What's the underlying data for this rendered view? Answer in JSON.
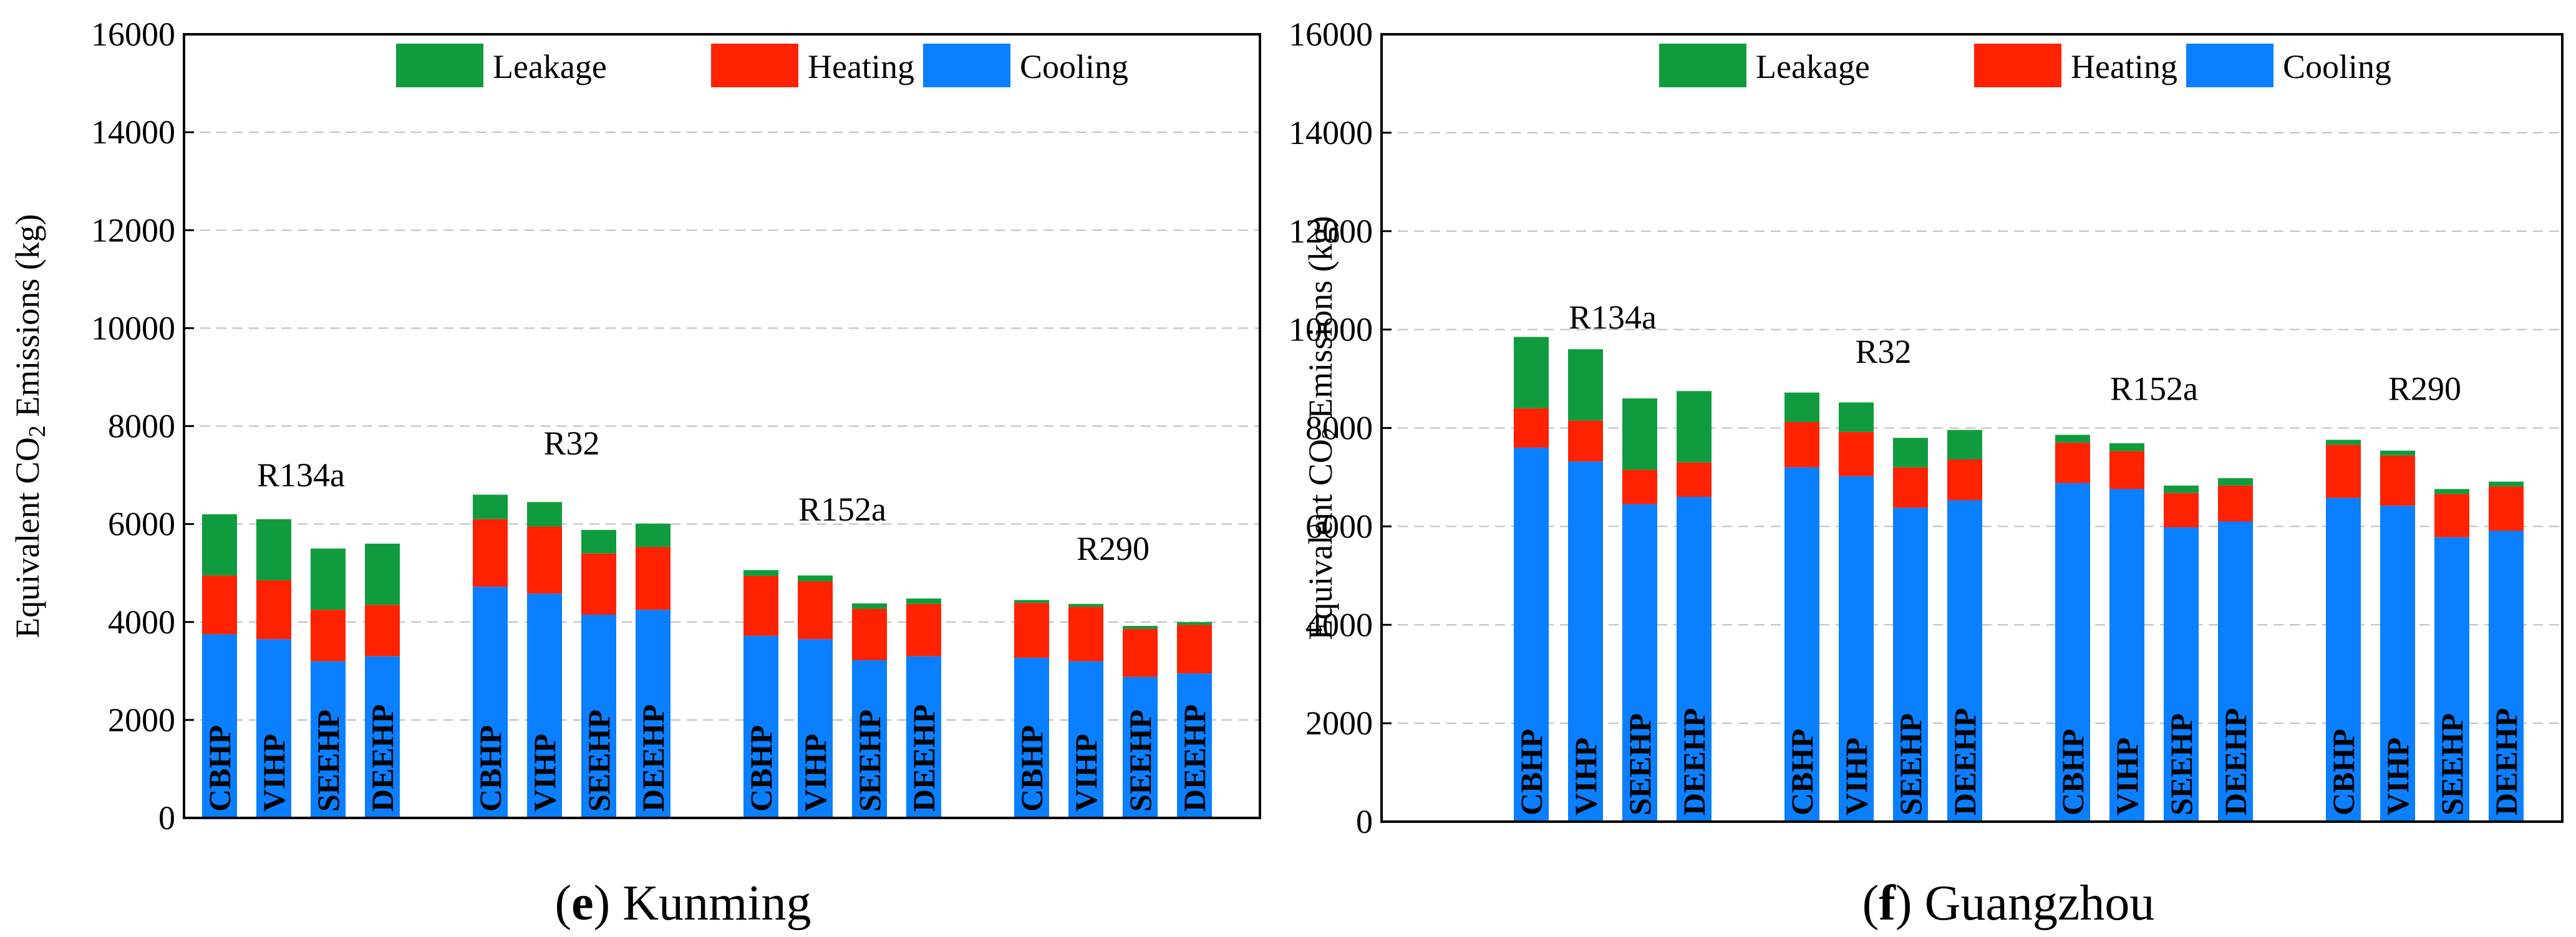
{
  "legend": [
    {
      "name": "Leakage",
      "color": "#109c3e"
    },
    {
      "name": "Heating",
      "color": "#ff2200"
    },
    {
      "name": "Cooling",
      "color": "#0a7fff"
    }
  ],
  "captions": [
    {
      "letter": "(e)",
      "city": "Kunming"
    },
    {
      "letter": "(f)",
      "city": "Guangzhou"
    }
  ],
  "chart_data": [
    {
      "type": "bar",
      "stacked": true,
      "title": "(e) Kunming",
      "ylabel_main": "Equivalent CO",
      "ylabel_sub": "2",
      "ylabel_tail": " Emissions (kg)",
      "ylim": [
        0,
        16000
      ],
      "yticks": [
        "0",
        "2000",
        "4000",
        "6000",
        "8000",
        "10000",
        "12000",
        "14000",
        "16000"
      ],
      "groups": [
        {
          "refrigerant": "R134a",
          "label_y": 7000,
          "bars": [
            {
              "config": "CBHP",
              "cooling": 3750,
              "heating": 1200,
              "leakage": 1250
            },
            {
              "config": "VIHP",
              "cooling": 3650,
              "heating": 1200,
              "leakage": 1250
            },
            {
              "config": "SEEHP",
              "cooling": 3200,
              "heating": 1050,
              "leakage": 1250
            },
            {
              "config": "DEEHP",
              "cooling": 3300,
              "heating": 1050,
              "leakage": 1250
            }
          ]
        },
        {
          "refrigerant": "R32",
          "label_y": 7650,
          "bars": [
            {
              "config": "CBHP",
              "cooling": 4720,
              "heating": 1380,
              "leakage": 500
            },
            {
              "config": "VIHP",
              "cooling": 4580,
              "heating": 1370,
              "leakage": 500
            },
            {
              "config": "SEEHP",
              "cooling": 4150,
              "heating": 1250,
              "leakage": 480
            },
            {
              "config": "DEEHP",
              "cooling": 4250,
              "heating": 1280,
              "leakage": 480
            }
          ]
        },
        {
          "refrigerant": "R152a",
          "label_y": 6300,
          "bars": [
            {
              "config": "CBHP",
              "cooling": 3720,
              "heating": 1220,
              "leakage": 120
            },
            {
              "config": "VIHP",
              "cooling": 3650,
              "heating": 1180,
              "leakage": 120
            },
            {
              "config": "SEEHP",
              "cooling": 3220,
              "heating": 1050,
              "leakage": 110
            },
            {
              "config": "DEEHP",
              "cooling": 3300,
              "heating": 1070,
              "leakage": 110
            }
          ]
        },
        {
          "refrigerant": "R290",
          "label_y": 5500,
          "bars": [
            {
              "config": "CBHP",
              "cooling": 3270,
              "heating": 1120,
              "leakage": 60
            },
            {
              "config": "VIHP",
              "cooling": 3200,
              "heating": 1110,
              "leakage": 60
            },
            {
              "config": "SEEHP",
              "cooling": 2880,
              "heating": 980,
              "leakage": 60
            },
            {
              "config": "DEEHP",
              "cooling": 2950,
              "heating": 990,
              "leakage": 60
            }
          ]
        }
      ]
    },
    {
      "type": "bar",
      "stacked": true,
      "title": "(f) Guangzhou",
      "ylabel_main": "Equivalent CO",
      "ylabel_sub": "2",
      "ylabel_tail": " Emissions (kg)",
      "ylim": [
        0,
        16000
      ],
      "yticks": [
        "0",
        "2000",
        "4000",
        "6000",
        "8000",
        "10000",
        "12000",
        "14000",
        "16000"
      ],
      "groups": [
        {
          "refrigerant": "R134a",
          "label_y": 10250,
          "bars": [
            {
              "config": "CBHP",
              "cooling": 7600,
              "heating": 800,
              "leakage": 1450
            },
            {
              "config": "VIHP",
              "cooling": 7320,
              "heating": 830,
              "leakage": 1450
            },
            {
              "config": "SEEHP",
              "cooling": 6450,
              "heating": 700,
              "leakage": 1450
            },
            {
              "config": "DEEHP",
              "cooling": 6600,
              "heating": 700,
              "leakage": 1450
            }
          ]
        },
        {
          "refrigerant": "R32",
          "label_y": 9550,
          "bars": [
            {
              "config": "CBHP",
              "cooling": 7200,
              "heating": 920,
              "leakage": 600
            },
            {
              "config": "VIHP",
              "cooling": 7020,
              "heating": 900,
              "leakage": 600
            },
            {
              "config": "SEEHP",
              "cooling": 6380,
              "heating": 820,
              "leakage": 600
            },
            {
              "config": "DEEHP",
              "cooling": 6530,
              "heating": 830,
              "leakage": 600
            }
          ]
        },
        {
          "refrigerant": "R152a",
          "label_y": 8800,
          "bars": [
            {
              "config": "CBHP",
              "cooling": 6880,
              "heating": 820,
              "leakage": 160
            },
            {
              "config": "VIHP",
              "cooling": 6760,
              "heating": 770,
              "leakage": 160
            },
            {
              "config": "SEEHP",
              "cooling": 5980,
              "heating": 700,
              "leakage": 150
            },
            {
              "config": "DEEHP",
              "cooling": 6100,
              "heating": 730,
              "leakage": 150
            }
          ]
        },
        {
          "refrigerant": "R290",
          "label_y": 8800,
          "bars": [
            {
              "config": "CBHP",
              "cooling": 6580,
              "heating": 1080,
              "leakage": 100
            },
            {
              "config": "VIHP",
              "cooling": 6420,
              "heating": 1020,
              "leakage": 100
            },
            {
              "config": "SEEHP",
              "cooling": 5780,
              "heating": 880,
              "leakage": 100
            },
            {
              "config": "DEEHP",
              "cooling": 5910,
              "heating": 900,
              "leakage": 100
            }
          ]
        }
      ]
    }
  ]
}
